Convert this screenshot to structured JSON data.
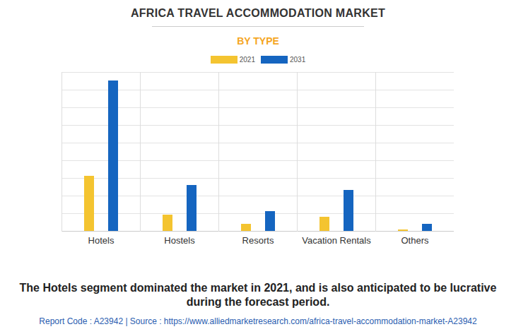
{
  "chart_data": {
    "type": "bar",
    "title": "AFRICA TRAVEL ACCOMMODATION MARKET",
    "subtitle": "BY TYPE",
    "caption": "The Hotels segment dominated the market in 2021, and is also anticipated to be lucrative during the forecast period.",
    "footer": "Report Code : A23942  |  Source : https://www.alliedmarketresearch.com/africa-travel-accommodation-market-A23942",
    "categories": [
      "Hotels",
      "Hostels",
      "Resorts",
      "Vacation Rentals",
      "Others"
    ],
    "series": [
      {
        "name": "2021",
        "color": "#f4c430",
        "values": [
          3.12,
          0.92,
          0.4,
          0.8,
          0.08
        ]
      },
      {
        "name": "2031",
        "color": "#1565c0",
        "values": [
          8.52,
          2.6,
          1.12,
          2.32,
          0.4
        ]
      }
    ],
    "ylim": [
      0,
      9
    ],
    "yticks": [
      0,
      1,
      2,
      3,
      4,
      5,
      6,
      7,
      8,
      9
    ],
    "grid": true,
    "legend": "top",
    "tick_labels": "x"
  }
}
